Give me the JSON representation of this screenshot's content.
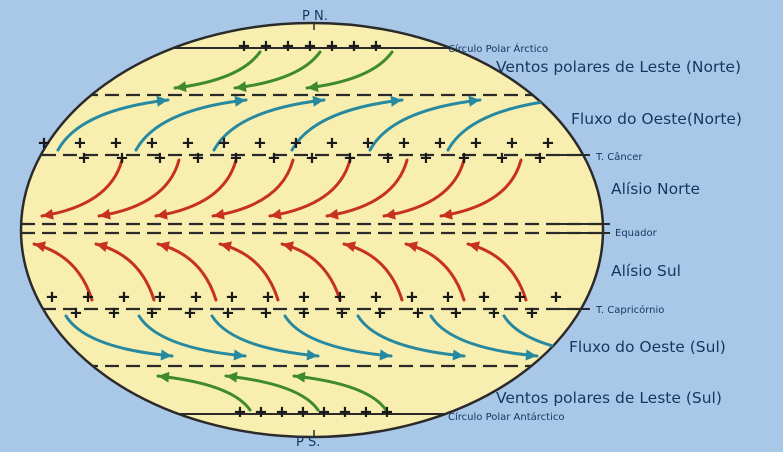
{
  "colors": {
    "background": "#a9c8e8",
    "globe_fill": "#f8eeb0",
    "globe_stroke": "#2a2a2a",
    "trade_wind": "#c6321d",
    "westerly": "#2789a0",
    "polar_easterly": "#3f8a2a"
  },
  "poles": {
    "north": "P N.",
    "south": "P S."
  },
  "labels": {
    "arctic_circle": "Círculo Polar Árctico",
    "polar_easterlies_north": "Ventos polares de Leste (Norte)",
    "westerlies_north": "Fluxo do Oeste(Norte)",
    "tropic_cancer": "T. Câncer",
    "trade_north": "Alísio Norte",
    "equator": "Equador",
    "trade_south": "Alísio Sul",
    "tropic_capricorn": "T. Capricórnio",
    "westerlies_south": "Fluxo do Oeste (Sul)",
    "polar_easterlies_south": "Ventos polares de Leste (Sul)",
    "antarctic_circle": "Círculo Polar Antárctico"
  },
  "wind_bands": {
    "polar_north": {
      "arrows": 3,
      "direction": "westward",
      "pressure": "high"
    },
    "westerly_north": {
      "arrows": 6,
      "direction": "eastward"
    },
    "trade_north": {
      "arrows": 8,
      "direction": "westward"
    },
    "trade_south": {
      "arrows": 8,
      "direction": "westward"
    },
    "westerly_south": {
      "arrows": 7,
      "direction": "eastward"
    },
    "polar_south": {
      "arrows": 3,
      "direction": "westward",
      "pressure": "high"
    }
  }
}
